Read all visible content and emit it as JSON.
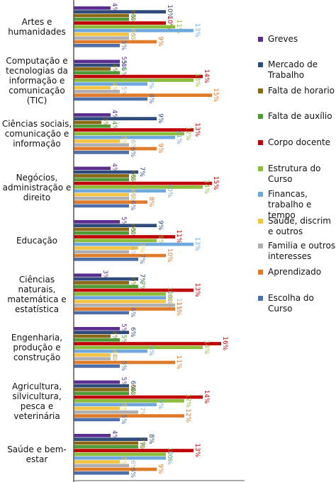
{
  "chart_data": {
    "type": "bar",
    "orientation": "horizontal",
    "categories": [
      "Artes e humanidades",
      "Computação e tecnologias da informação e comunicação (TIC)",
      "Ciências sociais, comunicação e informação",
      "Negócios, administração e direito",
      "Educação",
      "Ciências naturais, matemática e estatística",
      "Engenharia, produção e construção",
      "Agricultura, silvicultura, pesca e veterinária",
      "Saúde e bem-estar"
    ],
    "series": [
      {
        "name": "Greves",
        "color": "#5b2d8e",
        "values": [
          4,
          5,
          4,
          4,
          5,
          3,
          5,
          5,
          4
        ],
        "value_labels": [
          "4%",
          "5%",
          "4%",
          "4%",
          "5%",
          "3%",
          "5%",
          "5%",
          "4%"
        ]
      },
      {
        "name": "Mercado de Trabalho",
        "color": "#2e4b7c",
        "values": [
          10,
          5,
          9,
          7,
          9,
          7,
          6,
          6,
          8
        ],
        "value_labels": [
          "10%",
          "5%",
          "9%",
          "7%",
          "9%",
          "7%",
          "6%",
          "6%",
          "8%"
        ]
      },
      {
        "name": "Falta de horario",
        "color": "#8b6914",
        "values": [
          6,
          4,
          3,
          6,
          6,
          6,
          4,
          6,
          7
        ],
        "value_labels": [
          "6%",
          "4%",
          "3%",
          "6%",
          "6%",
          "6%",
          "4%",
          "6%",
          "7%"
        ]
      },
      {
        "name": "Falta de auxílio",
        "color": "#4e9a36",
        "values": [
          6,
          5,
          4,
          6,
          6,
          7,
          5,
          6,
          7
        ],
        "value_labels": [
          "6%",
          "5%",
          "4%",
          "6%",
          "6%",
          "7%",
          "5%",
          "6%",
          "7%"
        ]
      },
      {
        "name": "Corpo docente",
        "color": "#c00000",
        "values": [
          10,
          14,
          13,
          15,
          11,
          13,
          16,
          14,
          13
        ],
        "value_labels": [
          "10%",
          "14%",
          "13%",
          "15%",
          "11%",
          "13%",
          "16%",
          "14%",
          "13%"
        ]
      },
      {
        "name": "Estrutura do Curso",
        "color": "#8cbd3a",
        "values": [
          11,
          13,
          12,
          14,
          9,
          10,
          14,
          12,
          10
        ],
        "value_labels": [
          "11%",
          "13%",
          "12%",
          "14%",
          "9%",
          "10%",
          "14%",
          "12%",
          "10%"
        ]
      },
      {
        "name": "Financas, trabalho e tempo",
        "color": "#6fa8dc",
        "values": [
          13,
          8,
          11,
          10,
          13,
          10,
          8,
          9,
          10
        ],
        "value_labels": [
          "13%",
          "8%",
          "11%",
          "10%",
          "13%",
          "10%",
          "8%",
          "9%",
          "10%"
        ]
      },
      {
        "name": "Saude, discrim e outros",
        "color": "#f5c342",
        "values": [
          6,
          4,
          5,
          6,
          7,
          10,
          4,
          5,
          5
        ],
        "value_labels": [
          "6%",
          "4%",
          "5%",
          "6%",
          "7%",
          "10%",
          "4%",
          "5%",
          "5%"
        ]
      },
      {
        "name": "Familia e outros interesses",
        "color": "#b0b0b0",
        "values": [
          6,
          5,
          6,
          6,
          6,
          11,
          4,
          7,
          6
        ],
        "value_labels": [
          "6%",
          "5%",
          "6%",
          "6%",
          "6%",
          "11%",
          "4%",
          "7%",
          "6%"
        ]
      },
      {
        "name": "Aprendizado",
        "color": "#e07b2a",
        "values": [
          9,
          15,
          9,
          8,
          10,
          11,
          11,
          12,
          9
        ],
        "value_labels": [
          "9%",
          "15%",
          "9%",
          "8%",
          "10%",
          "11%",
          "11%",
          "12%",
          "9%"
        ]
      },
      {
        "name": "Escolha do Curso",
        "color": "#4f6fa8",
        "values": [
          5,
          8,
          6,
          6,
          7,
          6,
          5,
          5,
          6
        ],
        "value_labels": [
          "5%",
          "8%",
          "6%",
          "6%",
          "7%",
          "6%",
          "5%",
          "5%",
          "6%"
        ]
      }
    ],
    "legend": "right"
  }
}
